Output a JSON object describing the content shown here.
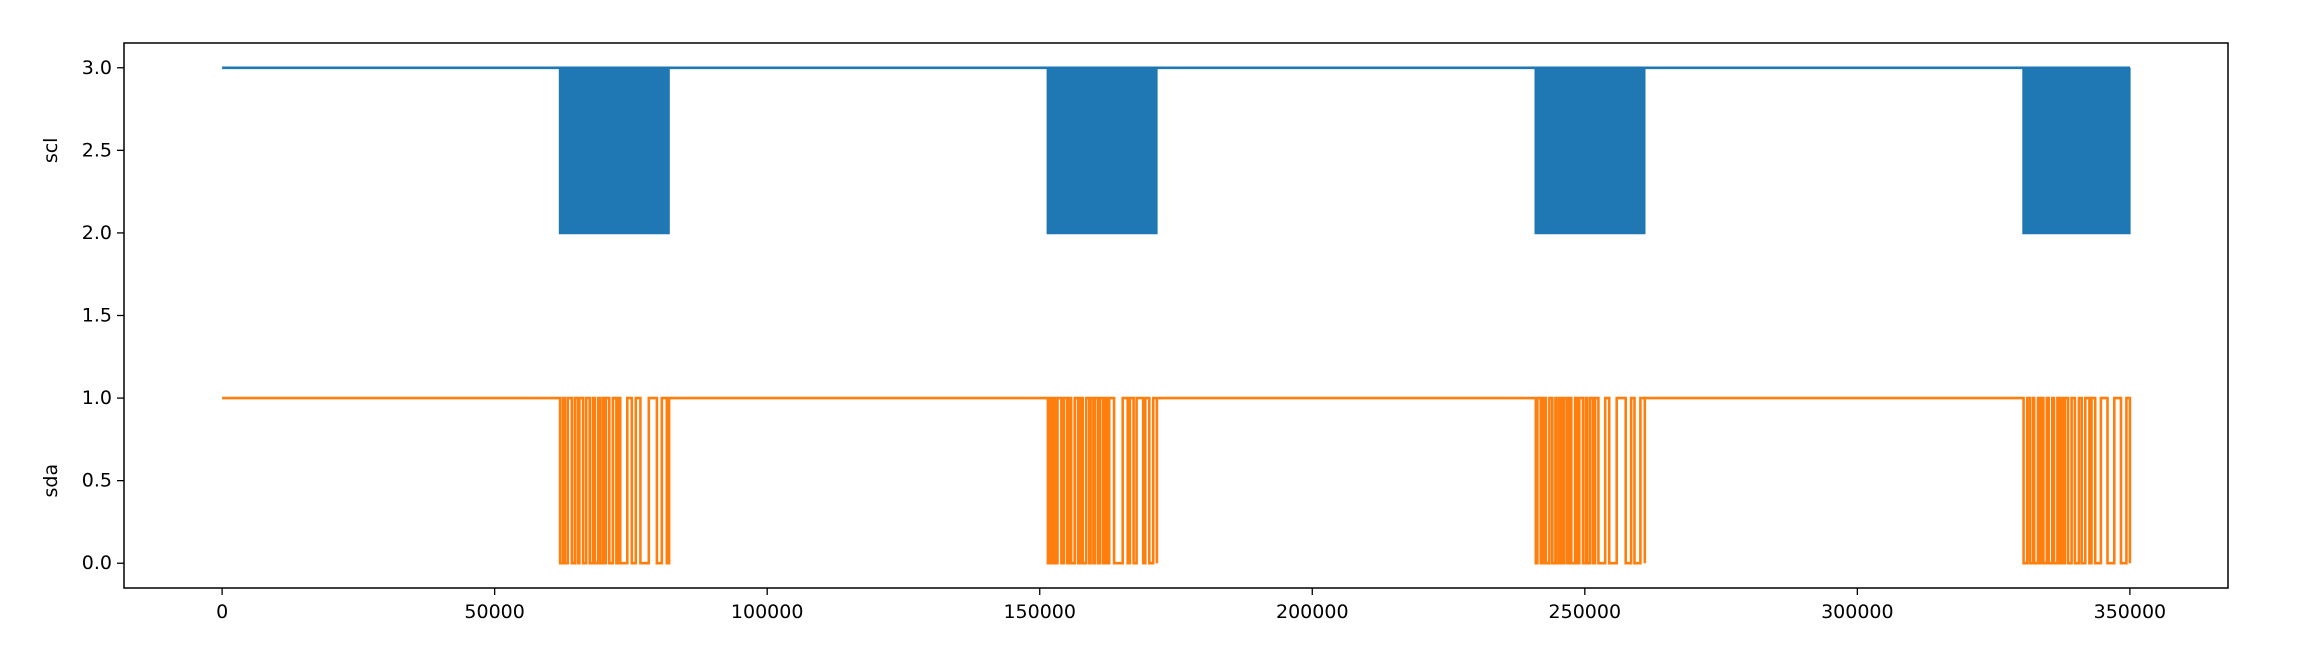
{
  "chart_data": {
    "type": "line",
    "title": "",
    "xlabel": "",
    "ylabel_series": [
      "scl",
      "sda"
    ],
    "xlim": [
      -18000,
      368000
    ],
    "ylim": [
      -0.15,
      3.15
    ],
    "x_ticks": [
      0,
      50000,
      100000,
      150000,
      200000,
      250000,
      300000,
      350000
    ],
    "x_tick_labels": [
      "0",
      "50000",
      "100000",
      "150000",
      "200000",
      "250000",
      "300000",
      "350000"
    ],
    "y_ticks": [
      0.0,
      0.5,
      1.0,
      1.5,
      2.0,
      2.5,
      3.0
    ],
    "y_tick_labels": [
      "0.0",
      "0.5",
      "1.0",
      "1.5",
      "2.0",
      "2.5",
      "3.0"
    ],
    "grid": false,
    "legend": "none",
    "burst_spans": [
      [
        62000,
        82000
      ],
      [
        151500,
        171500
      ],
      [
        241000,
        261000
      ],
      [
        330500,
        350000
      ]
    ],
    "series": [
      {
        "name": "scl",
        "color": "#1f77b4",
        "idle_level": 3.0,
        "active_low": 2.0,
        "x_start": 0,
        "x_end": 350000
      },
      {
        "name": "sda",
        "color": "#ff7f0e",
        "idle_level": 1.0,
        "active_low": 0.0,
        "x_start": 0,
        "x_end": 350000
      }
    ]
  }
}
